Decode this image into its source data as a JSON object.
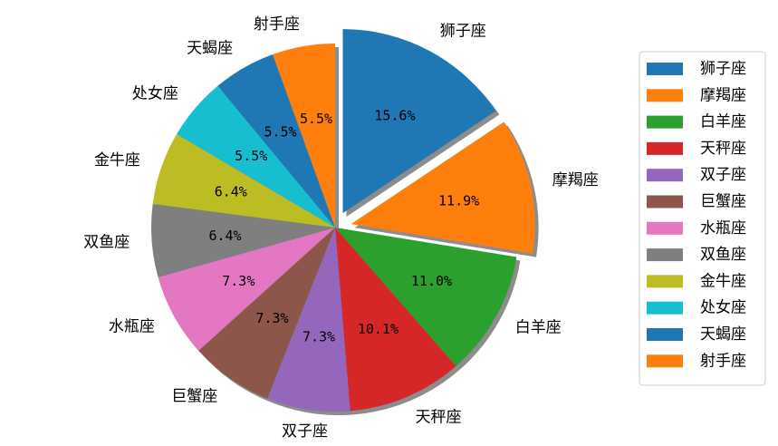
{
  "chart_data": {
    "type": "pie",
    "title": "",
    "start_angle_deg": 90,
    "direction": "clockwise",
    "shadow": true,
    "legend_position": "right",
    "slices": [
      {
        "label": "狮子座",
        "value": 15.6,
        "pct_text": "15.6%",
        "color": "#1f77b4",
        "explode": true
      },
      {
        "label": "摩羯座",
        "value": 11.9,
        "pct_text": "11.9%",
        "color": "#ff7f0e",
        "explode": true
      },
      {
        "label": "白羊座",
        "value": 11.0,
        "pct_text": "11.0%",
        "color": "#2ca02c",
        "explode": false
      },
      {
        "label": "天秤座",
        "value": 10.1,
        "pct_text": "10.1%",
        "color": "#d62728",
        "explode": false
      },
      {
        "label": "双子座",
        "value": 7.3,
        "pct_text": "7.3%",
        "color": "#9467bd",
        "explode": false
      },
      {
        "label": "巨蟹座",
        "value": 7.3,
        "pct_text": "7.3%",
        "color": "#8c564b",
        "explode": false
      },
      {
        "label": "水瓶座",
        "value": 7.3,
        "pct_text": "7.3%",
        "color": "#e377c2",
        "explode": false
      },
      {
        "label": "双鱼座",
        "value": 6.4,
        "pct_text": "6.4%",
        "color": "#7f7f7f",
        "explode": false
      },
      {
        "label": "金牛座",
        "value": 6.4,
        "pct_text": "6.4%",
        "color": "#bcbd22",
        "explode": false
      },
      {
        "label": "处女座",
        "value": 5.5,
        "pct_text": "5.5%",
        "color": "#17becf",
        "explode": false
      },
      {
        "label": "天蝎座",
        "value": 5.5,
        "pct_text": "5.5%",
        "color": "#1f77b4",
        "explode": false
      },
      {
        "label": "射手座",
        "value": 5.5,
        "pct_text": "5.5%",
        "color": "#ff7f0e",
        "explode": false
      }
    ]
  }
}
